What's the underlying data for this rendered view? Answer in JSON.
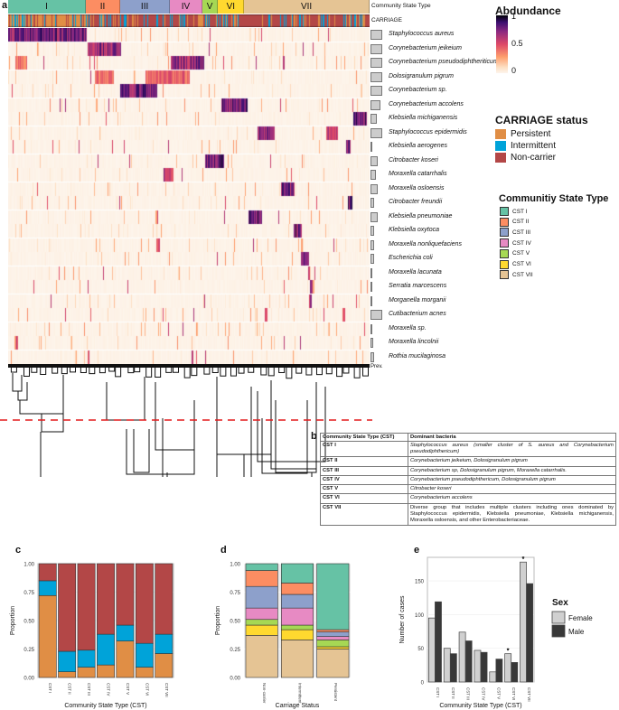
{
  "panels": {
    "a": "a",
    "b": "b",
    "c": "c",
    "d": "d",
    "e": "e"
  },
  "heatmap": {
    "cst_track_label": "Community State Type",
    "carriage_track_label": "CARRIAGE",
    "prevalence_label": "Prev.",
    "cst_segments": [
      {
        "label": "I",
        "fraction": 0.215,
        "color": "#66C2A5"
      },
      {
        "label": "II",
        "fraction": 0.095,
        "color": "#FC8D62"
      },
      {
        "label": "III",
        "fraction": 0.138,
        "color": "#8DA0CB"
      },
      {
        "label": "IV",
        "fraction": 0.089,
        "color": "#E78AC3"
      },
      {
        "label": "V",
        "fraction": 0.044,
        "color": "#A6D854"
      },
      {
        "label": "VI",
        "fraction": 0.072,
        "color": "#FFD92F"
      },
      {
        "label": "VII",
        "fraction": 0.347,
        "color": "#E5C494"
      }
    ],
    "species": [
      {
        "name": "Staphylococcus aureus",
        "prevalence": 0.9,
        "hot": [
          [
            0.0,
            0.215,
            0.9
          ]
        ]
      },
      {
        "name": "Corynebacterium jeikeium",
        "prevalence": 0.9,
        "hot": [
          [
            0.22,
            0.31,
            0.85
          ]
        ]
      },
      {
        "name": "Corynebacterium pseudodiphtheriticum",
        "prevalence": 0.9,
        "hot": [
          [
            0.45,
            0.54,
            0.85
          ],
          [
            0.02,
            0.05,
            0.5
          ]
        ]
      },
      {
        "name": "Dolosigranulum pigrum",
        "prevalence": 0.9,
        "hot": [
          [
            0.24,
            0.29,
            0.5
          ],
          [
            0.38,
            0.5,
            0.55
          ]
        ]
      },
      {
        "name": "Corynebacterium sp.",
        "prevalence": 0.9,
        "hot": [
          [
            0.31,
            0.41,
            0.9
          ]
        ]
      },
      {
        "name": "Corynebacterium accolens",
        "prevalence": 0.8,
        "hot": [
          [
            0.59,
            0.66,
            0.9
          ]
        ]
      },
      {
        "name": "Klebsiella michiganensis",
        "prevalence": 0.5,
        "hot": [
          [
            0.955,
            0.99,
            0.95
          ]
        ]
      },
      {
        "name": "Staphylococcus epidermidis",
        "prevalence": 0.9,
        "hot": [
          [
            0.69,
            0.735,
            0.9
          ],
          [
            0.88,
            0.91,
            0.7
          ]
        ]
      },
      {
        "name": "Klebsiella aerogenes",
        "prevalence": 0.15,
        "hot": [
          [
            0.935,
            0.945,
            0.95
          ]
        ]
      },
      {
        "name": "Citrobacter koseri",
        "prevalence": 0.6,
        "hot": [
          [
            0.545,
            0.595,
            0.95
          ]
        ]
      },
      {
        "name": "Moraxella catarrhalis",
        "prevalence": 0.4,
        "hot": [
          [
            0.43,
            0.455,
            0.75
          ]
        ]
      },
      {
        "name": "Moraxella osloensis",
        "prevalence": 0.6,
        "hot": [
          [
            0.755,
            0.79,
            0.9
          ]
        ]
      },
      {
        "name": "Citrobacter freundii",
        "prevalence": 0.3,
        "hot": [
          [
            0.94,
            0.95,
            0.95
          ]
        ]
      },
      {
        "name": "Klebsiella pneumoniae",
        "prevalence": 0.6,
        "hot": [
          [
            0.665,
            0.7,
            0.95
          ]
        ]
      },
      {
        "name": "Klebsiella oxytoca",
        "prevalence": 0.3,
        "hot": [
          [
            0.79,
            0.81,
            0.95
          ]
        ]
      },
      {
        "name": "Moraxella nonliquefaciens",
        "prevalence": 0.3,
        "hot": [
          [
            0.41,
            0.418,
            0.7
          ]
        ]
      },
      {
        "name": "Escherichia coli",
        "prevalence": 0.3,
        "hot": [
          [
            0.81,
            0.83,
            0.9
          ]
        ]
      },
      {
        "name": "Moraxella lacunata",
        "prevalence": 0.1,
        "hot": [
          [
            0.828,
            0.834,
            0.75
          ]
        ]
      },
      {
        "name": "Serratia marcescens",
        "prevalence": 0.1,
        "hot": [
          [
            0.835,
            0.841,
            0.95
          ]
        ]
      },
      {
        "name": "Morganella morganii",
        "prevalence": 0.1,
        "hot": [
          [
            0.832,
            0.838,
            0.8
          ]
        ]
      },
      {
        "name": "Cutibacterium acnes",
        "prevalence": 0.9,
        "hot": [
          [
            0.71,
            0.715,
            0.55
          ],
          [
            0.925,
            0.93,
            0.7
          ]
        ]
      },
      {
        "name": "Moraxella sp.",
        "prevalence": 0.15,
        "hot": [
          [
            0.52,
            0.524,
            0.4
          ]
        ]
      },
      {
        "name": "Moraxella lincolnii",
        "prevalence": 0.2,
        "hot": [
          [
            0.02,
            0.027,
            0.6
          ]
        ]
      },
      {
        "name": "Rothia mucilaginosa",
        "prevalence": 0.25,
        "hot": [
          [
            0.22,
            0.224,
            0.65
          ]
        ]
      }
    ]
  },
  "abundance_legend": {
    "title": "Abdundance",
    "ticks": [
      "1",
      "0.5",
      "0"
    ]
  },
  "carriage_legend": {
    "title": "CARRIAGE  status",
    "items": [
      {
        "label": "Persistent",
        "color": "#E08E45"
      },
      {
        "label": "Intermittent",
        "color": "#00A3D9"
      },
      {
        "label": "Non-carrier",
        "color": "#B34747"
      }
    ]
  },
  "cst_legend": {
    "title": "Communitiy State Type",
    "items": [
      {
        "label": "CST I",
        "color": "#66C2A5"
      },
      {
        "label": "CST II",
        "color": "#FC8D62"
      },
      {
        "label": "CST III",
        "color": "#8DA0CB"
      },
      {
        "label": "CST IV",
        "color": "#E78AC3"
      },
      {
        "label": "CST V",
        "color": "#A6D854"
      },
      {
        "label": "CST VI",
        "color": "#FFD92F"
      },
      {
        "label": "CST VII",
        "color": "#E5C494"
      }
    ]
  },
  "table_b": {
    "headers": [
      "Community State Type (CST)",
      "Dominant bacteria"
    ],
    "rows": [
      {
        "cst": "CST I",
        "bacteria": "Staphylococcus aureus (smaller cluster of S. aureus and Corynebacterium pseudodiphthericum)"
      },
      {
        "cst": "CST II",
        "bacteria": "Corynebacterium jeikeium, Dolosigranulum pigrum"
      },
      {
        "cst": "CST III",
        "bacteria": "Corynebacterium sp, Dolosigranulum pigrum, Moraxella catarrhalis."
      },
      {
        "cst": "CST IV",
        "bacteria": "Corynebacterium pseudodiphthericum, Dolosigranulum pigrum"
      },
      {
        "cst": "CST V",
        "bacteria": "Citrobacter koseri"
      },
      {
        "cst": "CST VI",
        "bacteria": "Corynebacterium accolens"
      },
      {
        "cst": "CST VII",
        "bacteria": "Diverse group that includes multiple clusters including ones dominated by Staphylococcus epidermidis, Klebsiella pneumoniae, Klebsiella michiganensis, Moraxella osloensis, and other Enterobacteriaceae."
      }
    ]
  },
  "chart_data": [
    {
      "id": "c",
      "type": "bar",
      "stacked": true,
      "title": "",
      "xlabel": "Community State Type (CST)",
      "ylabel": "Proportion",
      "ylim": [
        0,
        1
      ],
      "yticks": [
        "0.00",
        "0.25",
        "0.50",
        "0.75",
        "1.00"
      ],
      "categories": [
        "CST I",
        "CST II",
        "CST III",
        "CST IV",
        "CST V",
        "CST VI",
        "CST VII"
      ],
      "series": [
        {
          "name": "Persistent",
          "color": "#E08E45",
          "values": [
            0.72,
            0.05,
            0.09,
            0.11,
            0.32,
            0.09,
            0.21
          ]
        },
        {
          "name": "Intermittent",
          "color": "#00A3D9",
          "values": [
            0.13,
            0.18,
            0.15,
            0.27,
            0.14,
            0.21,
            0.17
          ]
        },
        {
          "name": "Non-carrier",
          "color": "#B34747",
          "values": [
            0.15,
            0.77,
            0.76,
            0.62,
            0.54,
            0.7,
            0.62
          ]
        }
      ]
    },
    {
      "id": "d",
      "type": "bar",
      "stacked": true,
      "title": "",
      "xlabel": "Carriage Status",
      "ylabel": "Proportion",
      "ylim": [
        0,
        1
      ],
      "yticks": [
        "0.00",
        "0.25",
        "0.50",
        "0.75",
        "1.00"
      ],
      "categories": [
        "Non-carrier",
        "Intermittent",
        "Persistent"
      ],
      "series": [
        {
          "name": "CST VII",
          "color": "#E5C494",
          "values": [
            0.37,
            0.33,
            0.25
          ]
        },
        {
          "name": "CST VI",
          "color": "#FFD92F",
          "values": [
            0.09,
            0.09,
            0.02
          ]
        },
        {
          "name": "CST V",
          "color": "#A6D854",
          "values": [
            0.05,
            0.04,
            0.06
          ]
        },
        {
          "name": "CST IV",
          "color": "#E78AC3",
          "values": [
            0.1,
            0.15,
            0.03
          ]
        },
        {
          "name": "CST III",
          "color": "#8DA0CB",
          "values": [
            0.19,
            0.12,
            0.04
          ]
        },
        {
          "name": "CST II",
          "color": "#FC8D62",
          "values": [
            0.14,
            0.1,
            0.02
          ]
        },
        {
          "name": "CST I",
          "color": "#66C2A5",
          "values": [
            0.06,
            0.17,
            0.58
          ]
        }
      ]
    },
    {
      "id": "e",
      "type": "bar",
      "stacked": false,
      "title": "",
      "xlabel": "Community State Type (CST)",
      "ylabel": "Number of cases",
      "ylim": [
        0,
        185
      ],
      "yticks": [
        "0",
        "50",
        "100",
        "150"
      ],
      "categories": [
        "CST I",
        "CST II",
        "CST III",
        "CST IV",
        "CST V",
        "CST VI",
        "CST VII"
      ],
      "legend_title": "Sex",
      "legend_position": "right",
      "series": [
        {
          "name": "Female",
          "color": "#D0D0D0",
          "values": [
            95,
            50,
            74,
            47,
            15,
            42,
            178
          ]
        },
        {
          "name": "Male",
          "color": "#383838",
          "values": [
            119,
            42,
            61,
            44,
            34,
            29,
            146
          ]
        }
      ],
      "annotations": [
        {
          "category": "CST VI",
          "series": "Female",
          "text": "*"
        },
        {
          "category": "CST VII",
          "series": "Female",
          "text": "*"
        }
      ]
    }
  ]
}
